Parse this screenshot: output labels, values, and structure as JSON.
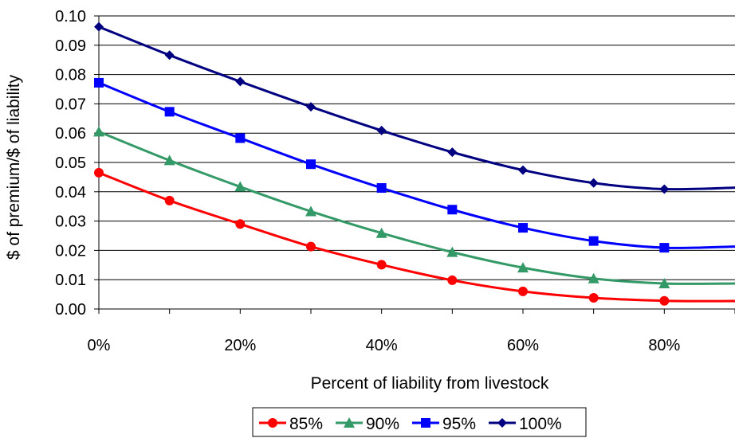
{
  "chart_data": {
    "type": "line",
    "title": "",
    "xlabel": "Percent of liability from livestock",
    "ylabel": "$ of premium/$ of liability",
    "x": [
      0,
      10,
      20,
      30,
      40,
      50,
      60,
      70,
      80,
      90
    ],
    "x_tick_values": [
      0,
      20,
      40,
      60,
      80
    ],
    "x_tick_labels": [
      "0%",
      "20%",
      "40%",
      "60%",
      "80%"
    ],
    "xlim": [
      0,
      90
    ],
    "y_tick_values": [
      0,
      0.01,
      0.02,
      0.03,
      0.04,
      0.05,
      0.06,
      0.07,
      0.08,
      0.09,
      0.1
    ],
    "y_tick_labels": [
      "0.00",
      "0.01",
      "0.02",
      "0.03",
      "0.04",
      "0.05",
      "0.06",
      "0.07",
      "0.08",
      "0.09",
      "0.10"
    ],
    "ylim": [
      0,
      0.1
    ],
    "grid": "horizontal",
    "legend_position": "bottom",
    "series": [
      {
        "name": "85%",
        "color": "#ff0000",
        "marker": "circle",
        "values": [
          0.0465,
          0.037,
          0.029,
          0.0213,
          0.0151,
          0.0098,
          0.006,
          0.0038,
          0.0028,
          0.0027
        ]
      },
      {
        "name": "90%",
        "color": "#339966",
        "marker": "triangle",
        "values": [
          0.0605,
          0.0507,
          0.0417,
          0.0333,
          0.0259,
          0.0194,
          0.0141,
          0.0104,
          0.0087,
          0.0087
        ]
      },
      {
        "name": "95%",
        "color": "#0000ff",
        "marker": "square",
        "values": [
          0.0772,
          0.0673,
          0.0583,
          0.0494,
          0.0413,
          0.0339,
          0.0277,
          0.0232,
          0.0209,
          0.0213
        ]
      },
      {
        "name": "100%",
        "color": "#000080",
        "marker": "diamond",
        "values": [
          0.0963,
          0.0866,
          0.0776,
          0.069,
          0.0609,
          0.0535,
          0.0474,
          0.043,
          0.0409,
          0.0414
        ]
      }
    ]
  }
}
